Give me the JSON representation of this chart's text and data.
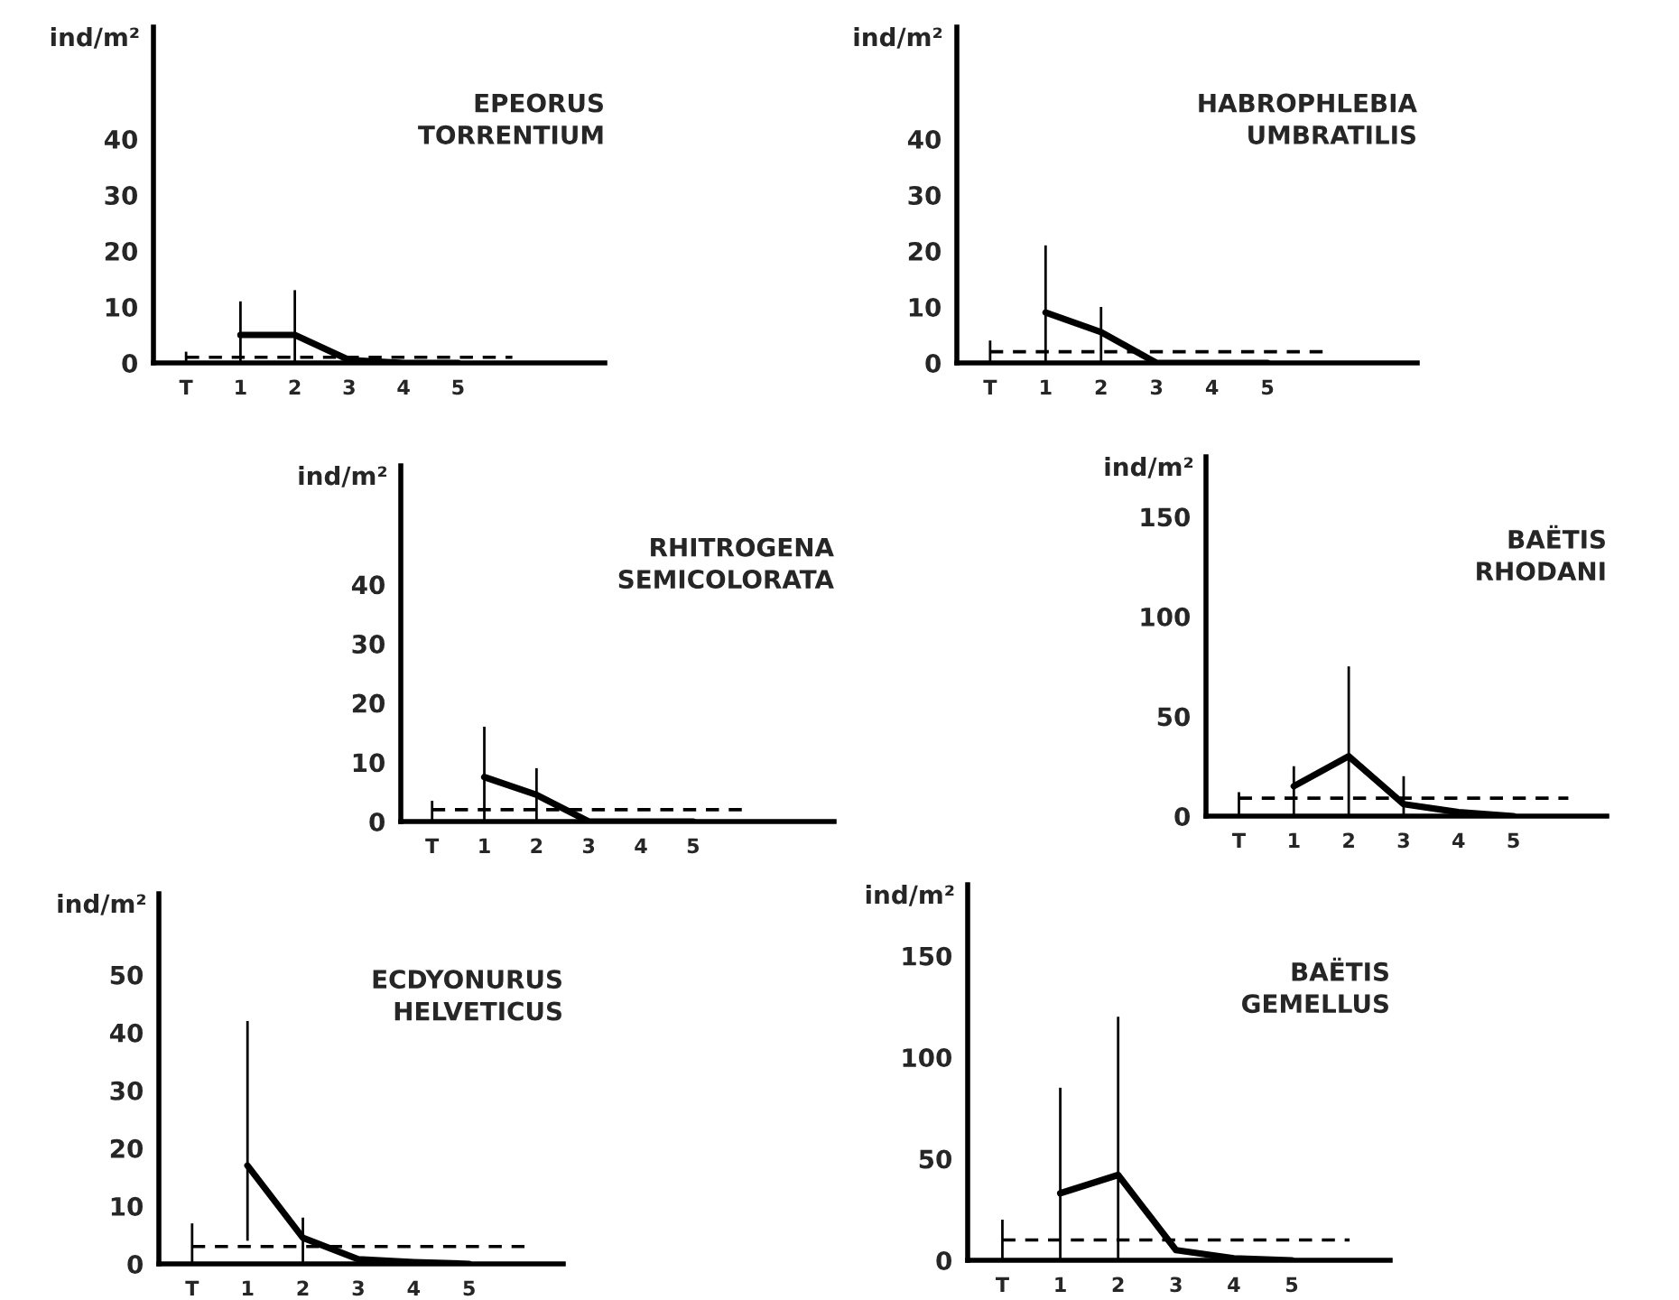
{
  "chart_data": [
    {
      "type": "line",
      "title": "EPEORUS\nTORRENTIUM",
      "ylabel": "ind/m²",
      "categories": [
        "T",
        "1",
        "2",
        "3",
        "4",
        "5",
        null,
        null
      ],
      "ylim": [
        0,
        60
      ],
      "yticks": [
        0,
        10,
        20,
        30,
        40
      ],
      "grid": false,
      "legend": false,
      "marker": "none",
      "series": [
        {
          "color": "#000000",
          "values": [
            null,
            5,
            5,
            0.5,
            0,
            0,
            null,
            null
          ],
          "errors": [
            null,
            [
              0,
              11
            ],
            [
              0,
              13
            ],
            null,
            null,
            null,
            null,
            null
          ]
        },
        {
          "color": "#000000",
          "line_style": "dashed",
          "values": [
            1,
            1,
            1,
            1,
            1,
            1,
            1,
            null
          ],
          "errors": [
            [
              0,
              2
            ],
            null,
            null,
            null,
            null,
            null,
            null,
            null
          ]
        }
      ]
    },
    {
      "type": "line",
      "title": "HABROPHLEBIA\nUMBRATILIS",
      "ylabel": "ind/m²",
      "categories": [
        "T",
        "1",
        "2",
        "3",
        "4",
        "5",
        null,
        null
      ],
      "ylim": [
        0,
        60
      ],
      "yticks": [
        0,
        10,
        20,
        30,
        40
      ],
      "grid": false,
      "legend": false,
      "marker": "none",
      "series": [
        {
          "color": "#000000",
          "values": [
            null,
            9,
            5.5,
            0,
            0,
            0,
            null,
            null
          ],
          "errors": [
            null,
            [
              0,
              21
            ],
            [
              0,
              10
            ],
            null,
            null,
            null,
            null,
            null
          ]
        },
        {
          "color": "#000000",
          "line_style": "dashed",
          "values": [
            2,
            2,
            2,
            2,
            2,
            2,
            2,
            null
          ],
          "errors": [
            [
              0,
              4
            ],
            null,
            null,
            null,
            null,
            null,
            null,
            null
          ]
        }
      ]
    },
    {
      "type": "line",
      "title": "RHITROGENA\nSEMICOLORATA",
      "ylabel": "ind/m²",
      "categories": [
        "T",
        "1",
        "2",
        "3",
        "4",
        "5",
        null,
        null
      ],
      "ylim": [
        0,
        60
      ],
      "yticks": [
        0,
        10,
        20,
        30,
        40
      ],
      "grid": false,
      "legend": false,
      "marker": "none",
      "series": [
        {
          "color": "#000000",
          "values": [
            null,
            7.5,
            4.5,
            0,
            0,
            0,
            null,
            null
          ],
          "errors": [
            null,
            [
              0,
              16
            ],
            [
              0,
              9
            ],
            null,
            null,
            null,
            null,
            null
          ]
        },
        {
          "color": "#000000",
          "line_style": "dashed",
          "values": [
            2,
            2,
            2,
            2,
            2,
            2,
            2,
            null
          ],
          "errors": [
            [
              0,
              3.5
            ],
            null,
            null,
            null,
            null,
            null,
            null,
            null
          ]
        }
      ]
    },
    {
      "type": "line",
      "title": "BAËTIS\nRHODANI",
      "ylabel": "ind/m²",
      "categories": [
        "T",
        "1",
        "2",
        "3",
        "4",
        "5",
        null
      ],
      "ylim": [
        0,
        180
      ],
      "yticks": [
        0,
        50,
        100,
        150
      ],
      "grid": false,
      "legend": false,
      "marker": "none",
      "series": [
        {
          "color": "#000000",
          "values": [
            null,
            15,
            30,
            6,
            2,
            0,
            null
          ],
          "errors": [
            null,
            [
              0,
              25
            ],
            [
              0,
              75
            ],
            [
              0,
              20
            ],
            null,
            null,
            null
          ]
        },
        {
          "color": "#000000",
          "line_style": "dashed",
          "values": [
            9,
            9,
            9,
            9,
            9,
            9,
            9
          ],
          "errors": [
            [
              0,
              12
            ],
            null,
            null,
            null,
            null,
            null,
            null
          ]
        }
      ]
    },
    {
      "type": "line",
      "title": "ECDYONURUS\nHELVETICUS",
      "ylabel": "ind/m²",
      "categories": [
        "T",
        "1",
        "2",
        "3",
        "4",
        "5",
        null
      ],
      "ylim": [
        0,
        64
      ],
      "yticks": [
        0,
        10,
        20,
        30,
        40,
        50
      ],
      "grid": false,
      "legend": false,
      "marker": "none",
      "series": [
        {
          "color": "#000000",
          "values": [
            null,
            17,
            4.5,
            0.8,
            0.3,
            0,
            null
          ],
          "errors": [
            null,
            [
              4,
              42
            ],
            [
              0,
              8
            ],
            null,
            null,
            null,
            null
          ]
        },
        {
          "color": "#000000",
          "line_style": "dashed",
          "values": [
            3,
            3,
            3,
            3,
            3,
            3,
            3
          ],
          "errors": [
            [
              0,
              7
            ],
            null,
            null,
            null,
            null,
            null,
            null
          ]
        }
      ]
    },
    {
      "type": "line",
      "title": "BAËTIS\nGEMELLUS",
      "ylabel": "ind/m²",
      "categories": [
        "T",
        "1",
        "2",
        "3",
        "4",
        "5",
        null
      ],
      "ylim": [
        0,
        185
      ],
      "yticks": [
        0,
        50,
        100,
        150
      ],
      "grid": false,
      "legend": false,
      "marker": "none",
      "series": [
        {
          "color": "#000000",
          "values": [
            null,
            33,
            42,
            5,
            1,
            0,
            null
          ],
          "errors": [
            null,
            [
              0,
              85
            ],
            [
              0,
              120
            ],
            null,
            null,
            null,
            null
          ]
        },
        {
          "color": "#000000",
          "line_style": "dashed",
          "values": [
            10,
            10,
            10,
            10,
            10,
            10,
            10
          ],
          "errors": [
            [
              0,
              20
            ],
            null,
            null,
            null,
            null,
            null,
            null
          ]
        }
      ]
    }
  ]
}
